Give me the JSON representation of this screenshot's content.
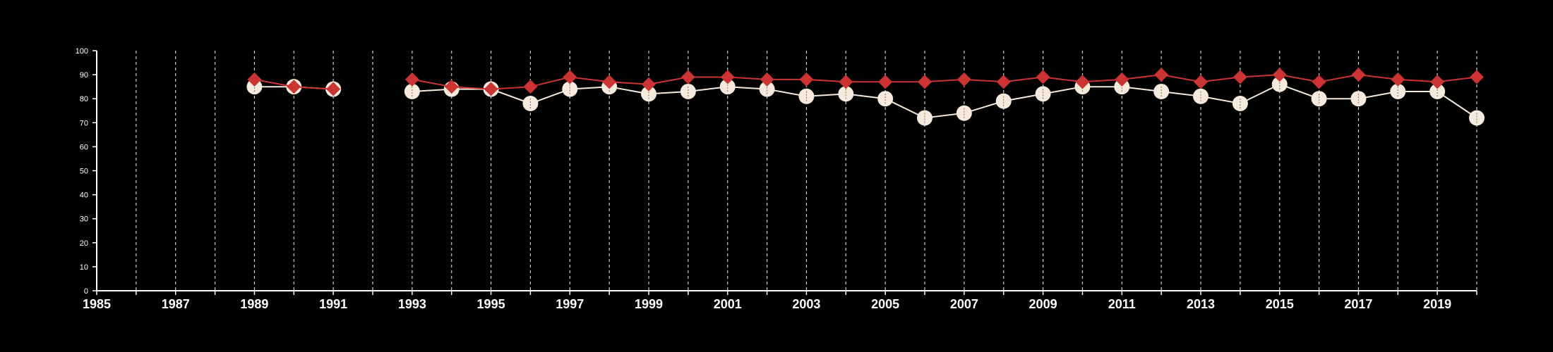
{
  "chart_data": {
    "type": "line",
    "title": "",
    "xlabel": "",
    "ylabel": "",
    "xlim": [
      1985,
      2020
    ],
    "ylim": [
      0,
      100
    ],
    "x_ticks": [
      1985,
      1987,
      1989,
      1991,
      1993,
      1995,
      1997,
      1999,
      2001,
      2003,
      2005,
      2007,
      2009,
      2011,
      2013,
      2015,
      2017,
      2019
    ],
    "y_ticks": [
      0,
      10,
      20,
      30,
      40,
      50,
      60,
      70,
      80,
      90,
      100
    ],
    "vertical_grid": "dashed, one line per year",
    "legend": "none",
    "background": "#000000",
    "series": [
      {
        "color": "#cc3333",
        "marker": "diamond",
        "points": [
          [
            1989,
            88
          ],
          [
            1990,
            85
          ],
          [
            1991,
            84
          ],
          [
            1993,
            88
          ],
          [
            1994,
            85
          ],
          [
            1995,
            84
          ],
          [
            1996,
            85
          ],
          [
            1997,
            89
          ],
          [
            1998,
            87
          ],
          [
            1999,
            86
          ],
          [
            2000,
            89
          ],
          [
            2001,
            89
          ],
          [
            2002,
            88
          ],
          [
            2003,
            88
          ],
          [
            2004,
            87
          ],
          [
            2005,
            87
          ],
          [
            2006,
            87
          ],
          [
            2007,
            88
          ],
          [
            2008,
            87
          ],
          [
            2009,
            89
          ],
          [
            2010,
            87
          ],
          [
            2011,
            88
          ],
          [
            2012,
            90
          ],
          [
            2013,
            87
          ],
          [
            2014,
            89
          ],
          [
            2015,
            90
          ],
          [
            2016,
            87
          ],
          [
            2017,
            90
          ],
          [
            2018,
            88
          ],
          [
            2019,
            87
          ],
          [
            2020,
            89
          ]
        ]
      },
      {
        "color": "#f5eadc",
        "marker": "circle",
        "points": [
          [
            1989,
            85
          ],
          [
            1990,
            85
          ],
          [
            1991,
            84
          ],
          [
            1993,
            83
          ],
          [
            1994,
            84
          ],
          [
            1995,
            84
          ],
          [
            1996,
            78
          ],
          [
            1997,
            84
          ],
          [
            1998,
            85
          ],
          [
            1999,
            82
          ],
          [
            2000,
            83
          ],
          [
            2001,
            85
          ],
          [
            2002,
            84
          ],
          [
            2003,
            81
          ],
          [
            2004,
            82
          ],
          [
            2005,
            80
          ],
          [
            2006,
            72
          ],
          [
            2007,
            74
          ],
          [
            2008,
            79
          ],
          [
            2009,
            82
          ],
          [
            2010,
            85
          ],
          [
            2011,
            85
          ],
          [
            2012,
            83
          ],
          [
            2013,
            81
          ],
          [
            2014,
            78
          ],
          [
            2015,
            86
          ],
          [
            2016,
            80
          ],
          [
            2017,
            80
          ],
          [
            2018,
            83
          ],
          [
            2019,
            83
          ],
          [
            2020,
            72
          ]
        ]
      }
    ]
  }
}
